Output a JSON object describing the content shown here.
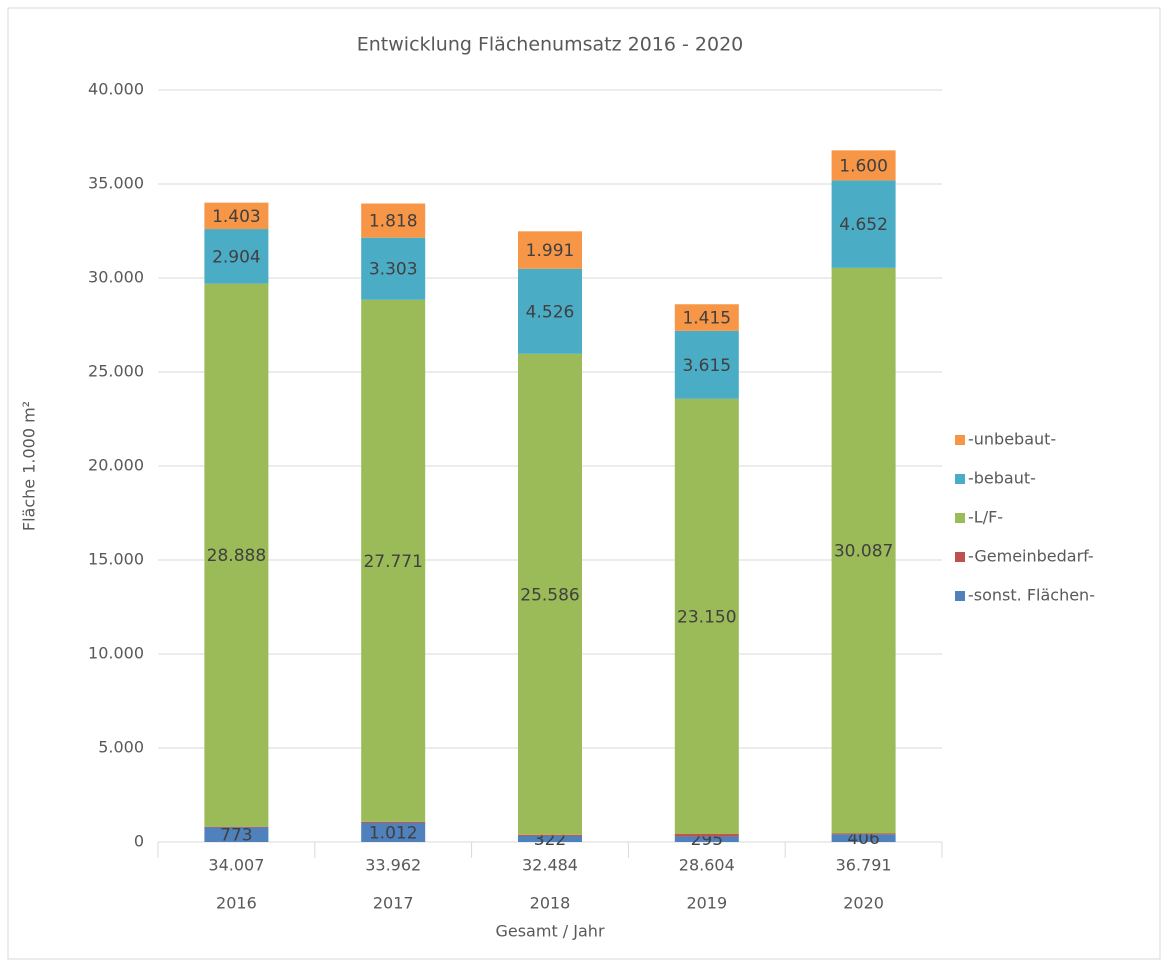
{
  "chart_data": {
    "type": "stacked_bar",
    "title": "Entwicklung Flächenumsatz 2016 - 2020",
    "x_label": "Gesamt / Jahr",
    "y_label": "Fläche 1.000 m²",
    "categories": [
      "2016",
      "2017",
      "2018",
      "2019",
      "2020"
    ],
    "category_totals": [
      "34.007",
      "33.962",
      "32.484",
      "28.604",
      "36.791"
    ],
    "series": [
      {
        "name": "-sonst. Flächen-",
        "color": "#4f81bd",
        "values": [
          773,
          1012,
          322,
          295,
          406
        ],
        "value_labels": [
          "773",
          "1.012",
          "322",
          "295",
          "406"
        ]
      },
      {
        "name": "-Gemeinbedarf-",
        "color": "#c0504d",
        "values": [
          39,
          58,
          59,
          129,
          46
        ]
      },
      {
        "name": "-L/F-",
        "color": "#9bbb59",
        "values": [
          28888,
          27771,
          25586,
          23150,
          30087
        ],
        "value_labels": [
          "28.888",
          "27.771",
          "25.586",
          "23.150",
          "30.087"
        ]
      },
      {
        "name": "-bebaut-",
        "color": "#4bacc6",
        "values": [
          2904,
          3303,
          4526,
          3615,
          4652
        ],
        "value_labels": [
          "2.904",
          "3.303",
          "4.526",
          "3.615",
          "4.652"
        ]
      },
      {
        "name": "-unbebaut-",
        "color": "#f79646",
        "values": [
          1403,
          1818,
          1991,
          1415,
          1600
        ],
        "value_labels": [
          "1.403",
          "1.818",
          "1.991",
          "1.415",
          "1.600"
        ]
      }
    ],
    "ylim": [
      0,
      40000
    ],
    "yticks": [
      0,
      {
        "value": 5000,
        "label": "5.000"
      },
      {
        "value": 10000,
        "label": "10.000"
      },
      {
        "value": 15000,
        "label": "15.000"
      },
      {
        "value": 20000,
        "label": "20.000"
      },
      {
        "value": 25000,
        "label": "25.000"
      },
      {
        "value": 30000,
        "label": "30.000"
      },
      {
        "value": 35000,
        "label": "35.000"
      },
      {
        "value": 40000,
        "label": "40.000"
      }
    ],
    "grid": true,
    "legend": "right"
  }
}
